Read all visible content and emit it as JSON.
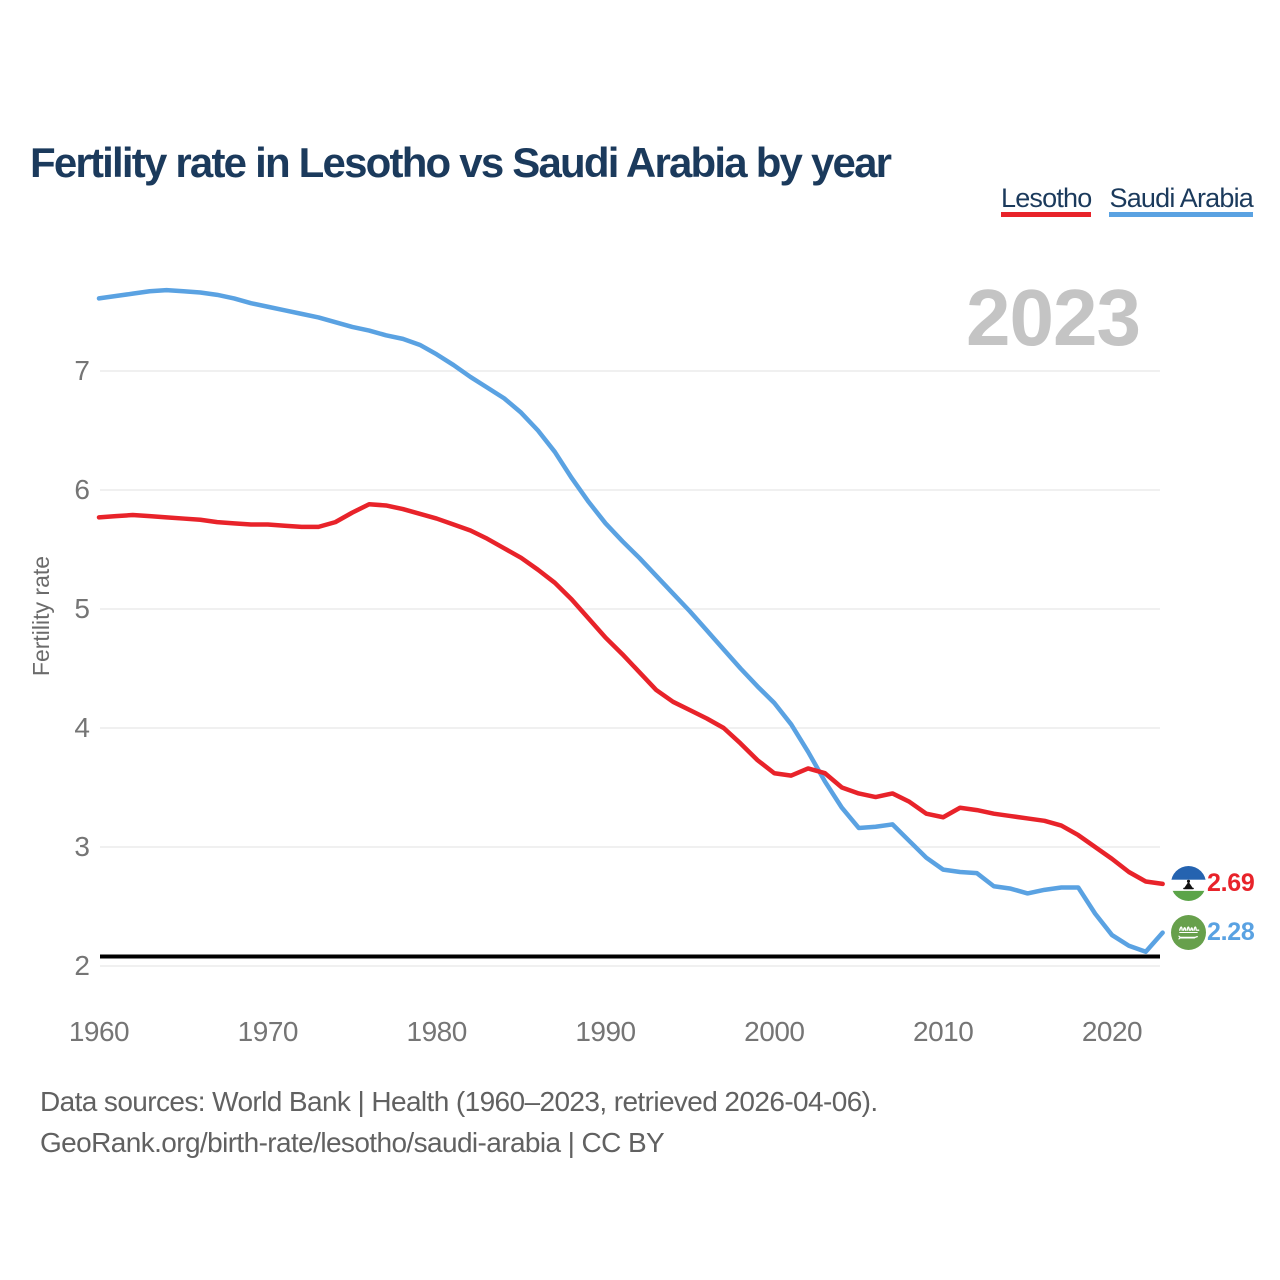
{
  "header": {
    "title": "Fertility rate in Lesotho vs Saudi Arabia by year"
  },
  "legend": {
    "items": [
      {
        "label": "Lesotho",
        "color": "#e8232a"
      },
      {
        "label": "Saudi Arabia",
        "color": "#5aa2e2"
      }
    ]
  },
  "watermark": "2023",
  "y_axis": {
    "label": "Fertility rate",
    "ticks": [
      7,
      6,
      5,
      4,
      3,
      2
    ]
  },
  "x_axis": {
    "ticks": [
      1960,
      1970,
      1980,
      1990,
      2000,
      2010,
      2020
    ]
  },
  "footer": {
    "line1": "Data sources: World Bank | Health (1960–2023, retrieved 2026-04-06).",
    "line2": "GeoRank.org/birth-rate/lesotho/saudi-arabia | CC BY"
  },
  "colors": {
    "title": "#1b3a5c",
    "lesotho_red": "#e8232a",
    "saudi_blue": "#5aa2e2",
    "gridline": "#ececec",
    "axis_text": "#757575",
    "watermark_gray": "#c4c4c4",
    "baseline_black": "#000000"
  },
  "chart_data": {
    "type": "line",
    "title": "Fertility rate in Lesotho vs Saudi Arabia by year",
    "xlabel": "",
    "ylabel": "Fertility rate",
    "grid": "horizontal",
    "legend_position": "top-right",
    "watermark_year": "2023",
    "xlim": [
      1960,
      2023
    ],
    "ylim": [
      2,
      7.8
    ],
    "yticks": [
      2,
      3,
      4,
      5,
      6,
      7
    ],
    "xticks": [
      1960,
      1970,
      1980,
      1990,
      2000,
      2010,
      2020
    ],
    "baseline_value": 2.08,
    "x": [
      1960,
      1961,
      1962,
      1963,
      1964,
      1965,
      1966,
      1967,
      1968,
      1969,
      1970,
      1971,
      1972,
      1973,
      1974,
      1975,
      1976,
      1977,
      1978,
      1979,
      1980,
      1981,
      1982,
      1983,
      1984,
      1985,
      1986,
      1987,
      1988,
      1989,
      1990,
      1991,
      1992,
      1993,
      1994,
      1995,
      1996,
      1997,
      1998,
      1999,
      2000,
      2001,
      2002,
      2003,
      2004,
      2005,
      2006,
      2007,
      2008,
      2009,
      2010,
      2011,
      2012,
      2013,
      2014,
      2015,
      2016,
      2017,
      2018,
      2019,
      2020,
      2021,
      2022,
      2023
    ],
    "series": [
      {
        "name": "Lesotho",
        "color": "#e8232a",
        "end_label": "2.69",
        "end_value": 2.69,
        "values": [
          5.77,
          5.78,
          5.79,
          5.78,
          5.77,
          5.76,
          5.75,
          5.73,
          5.72,
          5.71,
          5.71,
          5.7,
          5.69,
          5.69,
          5.73,
          5.81,
          5.88,
          5.87,
          5.84,
          5.8,
          5.76,
          5.71,
          5.66,
          5.59,
          5.51,
          5.43,
          5.33,
          5.22,
          5.08,
          4.92,
          4.76,
          4.62,
          4.47,
          4.32,
          4.22,
          4.15,
          4.08,
          4.0,
          3.87,
          3.73,
          3.62,
          3.6,
          3.66,
          3.62,
          3.5,
          3.45,
          3.42,
          3.45,
          3.38,
          3.28,
          3.25,
          3.33,
          3.31,
          3.28,
          3.26,
          3.24,
          3.22,
          3.18,
          3.1,
          3.0,
          2.9,
          2.79,
          2.71,
          2.69
        ]
      },
      {
        "name": "Saudi Arabia",
        "color": "#5aa2e2",
        "end_label": "2.28",
        "end_value": 2.28,
        "values": [
          7.61,
          7.63,
          7.65,
          7.67,
          7.68,
          7.67,
          7.66,
          7.64,
          7.61,
          7.57,
          7.54,
          7.51,
          7.48,
          7.45,
          7.41,
          7.37,
          7.34,
          7.3,
          7.27,
          7.22,
          7.14,
          7.05,
          6.95,
          6.86,
          6.77,
          6.65,
          6.5,
          6.32,
          6.1,
          5.9,
          5.72,
          5.57,
          5.43,
          5.28,
          5.13,
          4.98,
          4.82,
          4.66,
          4.5,
          4.35,
          4.21,
          4.03,
          3.8,
          3.55,
          3.33,
          3.16,
          3.17,
          3.19,
          3.05,
          2.91,
          2.81,
          2.79,
          2.78,
          2.67,
          2.65,
          2.61,
          2.64,
          2.66,
          2.66,
          2.44,
          2.26,
          2.17,
          2.12,
          2.28
        ]
      }
    ]
  }
}
